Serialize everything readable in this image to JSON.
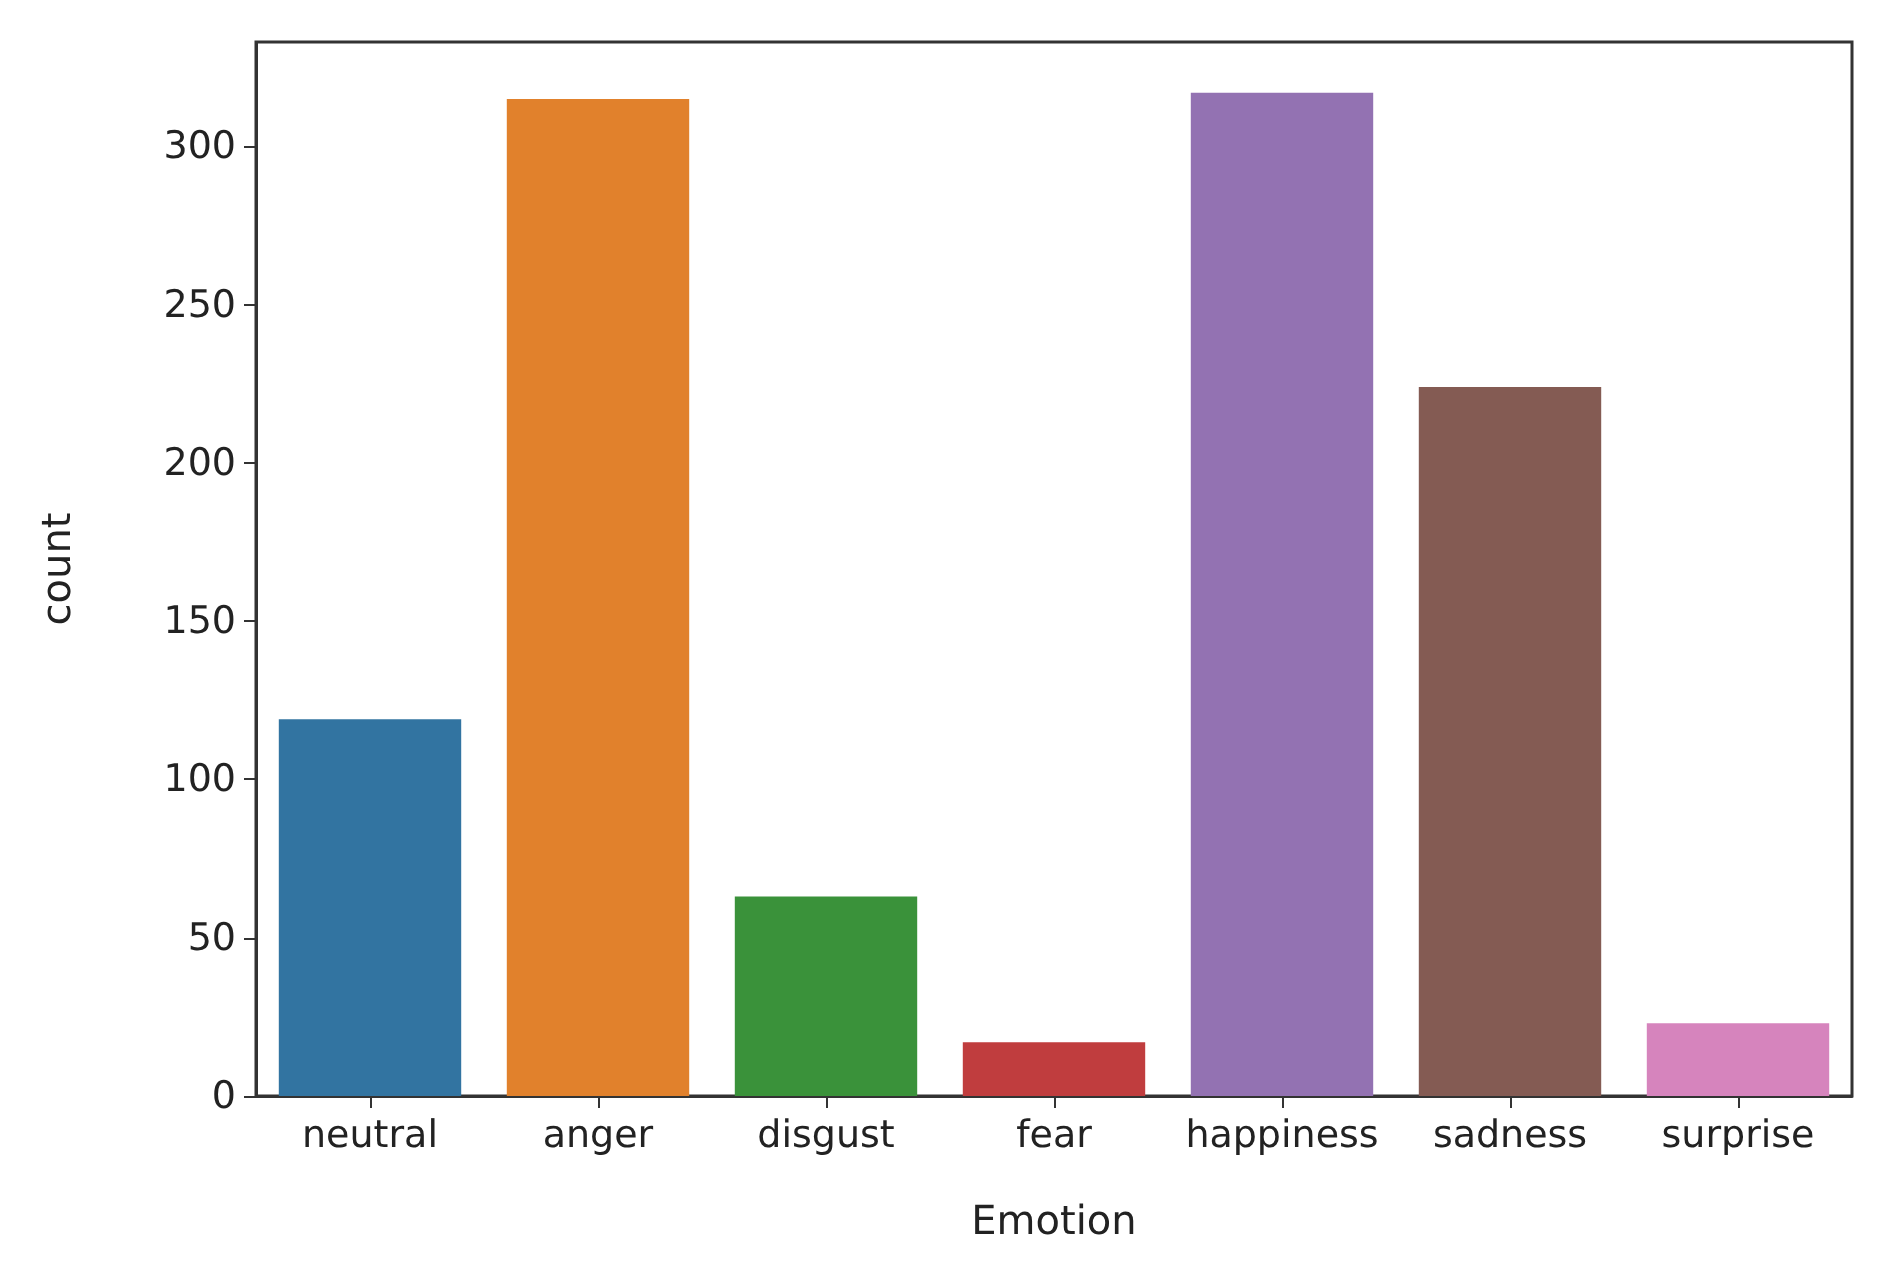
{
  "chart_data": {
    "type": "bar",
    "xlabel": "Emotion",
    "ylabel": "count",
    "categories": [
      "neutral",
      "anger",
      "disgust",
      "fear",
      "happiness",
      "sadness",
      "surprise"
    ],
    "values": [
      119,
      315,
      63,
      17,
      317,
      224,
      23
    ],
    "colors": [
      "#3274a1",
      "#e1812c",
      "#3a923a",
      "#c03d3e",
      "#9372b2",
      "#845b53",
      "#d684bd"
    ],
    "ylim": [
      0,
      333
    ],
    "yticks": [
      0,
      50,
      100,
      150,
      200,
      250,
      300
    ],
    "grid": false
  }
}
